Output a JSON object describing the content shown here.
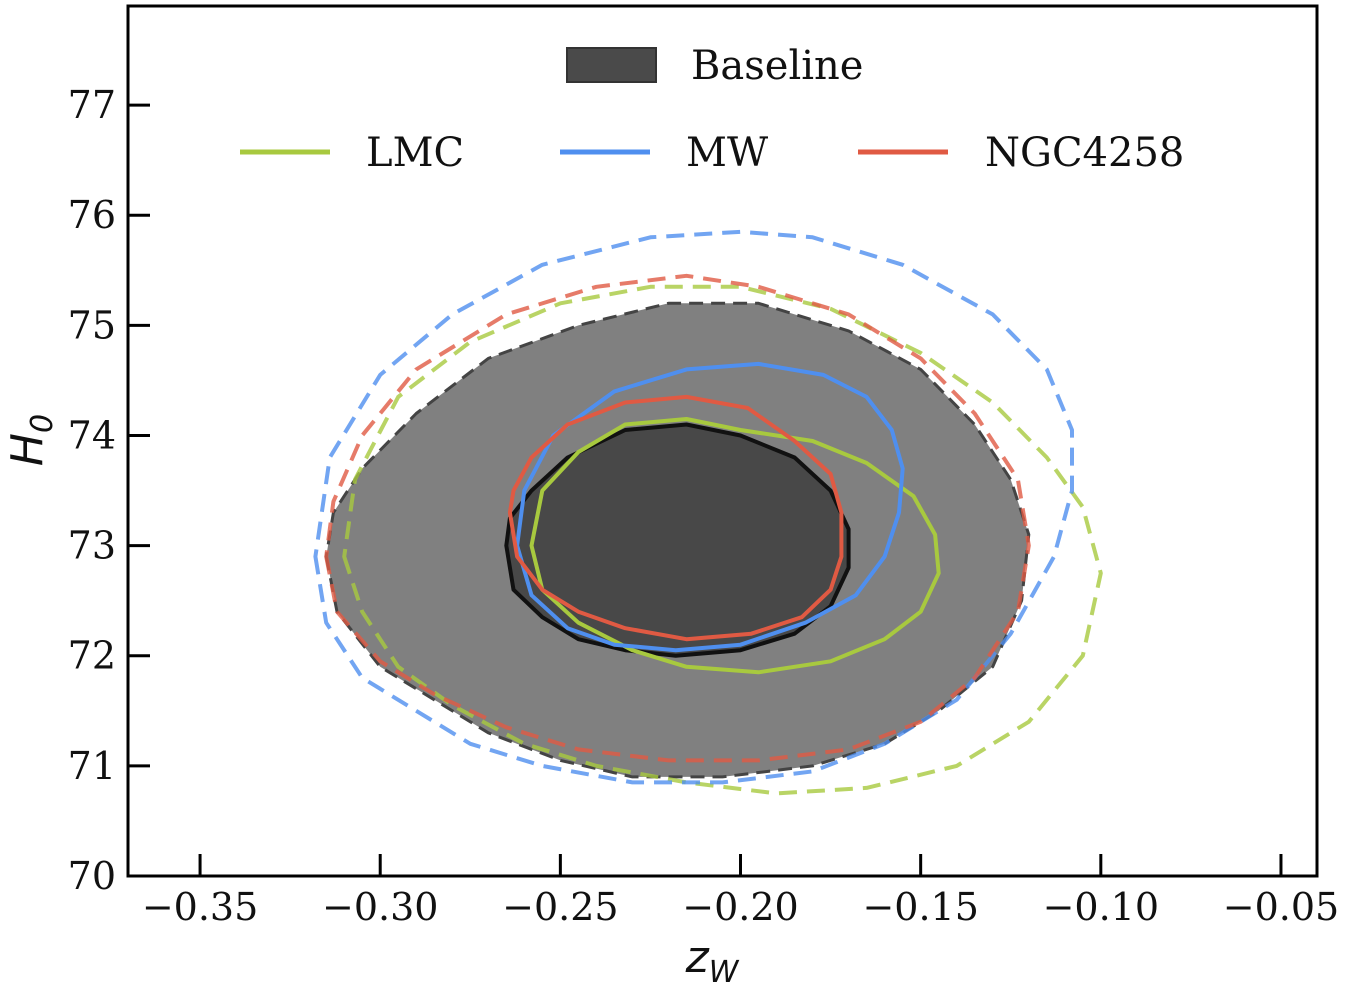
{
  "chart_data": {
    "type": "contour",
    "title": "",
    "xlabel": {
      "main": "z",
      "sub": "W"
    },
    "ylabel": {
      "main": "H",
      "sub": "0"
    },
    "xlim": [
      -0.37,
      -0.04
    ],
    "ylim": [
      70,
      77.9
    ],
    "xticks": [
      -0.35,
      -0.3,
      -0.25,
      -0.2,
      -0.15,
      -0.1,
      -0.05
    ],
    "xtick_labels": [
      "−0.35",
      "−0.30",
      "−0.25",
      "−0.20",
      "−0.15",
      "−0.10",
      "−0.05"
    ],
    "yticks": [
      70,
      71,
      72,
      73,
      74,
      75,
      76,
      77
    ],
    "ytick_labels": [
      "70",
      "71",
      "72",
      "73",
      "74",
      "75",
      "76",
      "77"
    ],
    "legend": {
      "position": "top-center",
      "filled_entry": {
        "label": "Baseline",
        "color": "#4a4a4a"
      },
      "line_entries": [
        {
          "label": "LMC",
          "color": "#a8c93f"
        },
        {
          "label": "MW",
          "color": "#4f8fef"
        },
        {
          "label": "NGC4258",
          "color": "#e05a43"
        }
      ]
    },
    "series": [
      {
        "name": "Baseline",
        "kind": "filled",
        "contours": [
          {
            "level": "95%",
            "fill": "#808080",
            "edge": "#444444",
            "points": [
              [
                -0.315,
                72.9
              ],
              [
                -0.312,
                72.4
              ],
              [
                -0.3,
                71.9
              ],
              [
                -0.285,
                71.6
              ],
              [
                -0.27,
                71.3
              ],
              [
                -0.25,
                71.05
              ],
              [
                -0.23,
                70.9
              ],
              [
                -0.205,
                70.9
              ],
              [
                -0.18,
                71.0
              ],
              [
                -0.16,
                71.2
              ],
              [
                -0.145,
                71.5
              ],
              [
                -0.13,
                71.9
              ],
              [
                -0.122,
                72.5
              ],
              [
                -0.12,
                73.1
              ],
              [
                -0.125,
                73.6
              ],
              [
                -0.135,
                74.1
              ],
              [
                -0.15,
                74.6
              ],
              [
                -0.17,
                74.95
              ],
              [
                -0.195,
                75.2
              ],
              [
                -0.22,
                75.2
              ],
              [
                -0.245,
                75.0
              ],
              [
                -0.27,
                74.7
              ],
              [
                -0.29,
                74.2
              ],
              [
                -0.305,
                73.7
              ],
              [
                -0.313,
                73.3
              ]
            ]
          },
          {
            "level": "68%",
            "fill": "#484848",
            "edge": "#111111",
            "points": [
              [
                -0.265,
                73.0
              ],
              [
                -0.263,
                72.6
              ],
              [
                -0.255,
                72.35
              ],
              [
                -0.245,
                72.15
              ],
              [
                -0.232,
                72.05
              ],
              [
                -0.218,
                72.0
              ],
              [
                -0.2,
                72.05
              ],
              [
                -0.185,
                72.2
              ],
              [
                -0.175,
                72.45
              ],
              [
                -0.17,
                72.8
              ],
              [
                -0.17,
                73.15
              ],
              [
                -0.175,
                73.5
              ],
              [
                -0.185,
                73.8
              ],
              [
                -0.2,
                74.0
              ],
              [
                -0.215,
                74.1
              ],
              [
                -0.232,
                74.05
              ],
              [
                -0.248,
                73.8
              ],
              [
                -0.258,
                73.5
              ],
              [
                -0.264,
                73.25
              ]
            ]
          }
        ]
      },
      {
        "name": "LMC",
        "kind": "line",
        "color": "#a8c93f",
        "contours": [
          {
            "level": "95%",
            "style": "dashed",
            "points": [
              [
                -0.31,
                72.9
              ],
              [
                -0.305,
                72.4
              ],
              [
                -0.295,
                71.9
              ],
              [
                -0.28,
                71.55
              ],
              [
                -0.26,
                71.2
              ],
              [
                -0.24,
                71.0
              ],
              [
                -0.215,
                70.85
              ],
              [
                -0.19,
                70.75
              ],
              [
                -0.165,
                70.8
              ],
              [
                -0.14,
                71.0
              ],
              [
                -0.12,
                71.4
              ],
              [
                -0.105,
                72.0
              ],
              [
                -0.1,
                72.75
              ],
              [
                -0.105,
                73.35
              ],
              [
                -0.115,
                73.8
              ],
              [
                -0.13,
                74.3
              ],
              [
                -0.15,
                74.75
              ],
              [
                -0.175,
                75.15
              ],
              [
                -0.2,
                75.35
              ],
              [
                -0.225,
                75.35
              ],
              [
                -0.25,
                75.2
              ],
              [
                -0.275,
                74.85
              ],
              [
                -0.295,
                74.35
              ],
              [
                -0.307,
                73.6
              ]
            ]
          },
          {
            "level": "68%",
            "style": "solid",
            "points": [
              [
                -0.258,
                73.0
              ],
              [
                -0.255,
                72.6
              ],
              [
                -0.245,
                72.3
              ],
              [
                -0.23,
                72.05
              ],
              [
                -0.215,
                71.9
              ],
              [
                -0.195,
                71.85
              ],
              [
                -0.175,
                71.95
              ],
              [
                -0.16,
                72.15
              ],
              [
                -0.15,
                72.4
              ],
              [
                -0.145,
                72.75
              ],
              [
                -0.146,
                73.1
              ],
              [
                -0.152,
                73.45
              ],
              [
                -0.165,
                73.75
              ],
              [
                -0.18,
                73.95
              ],
              [
                -0.2,
                74.05
              ],
              [
                -0.215,
                74.15
              ],
              [
                -0.232,
                74.1
              ],
              [
                -0.245,
                73.85
              ],
              [
                -0.255,
                73.5
              ]
            ]
          }
        ]
      },
      {
        "name": "MW",
        "kind": "line",
        "color": "#4f8fef",
        "contours": [
          {
            "level": "95%",
            "style": "dashed",
            "points": [
              [
                -0.318,
                72.9
              ],
              [
                -0.315,
                72.3
              ],
              [
                -0.305,
                71.8
              ],
              [
                -0.29,
                71.5
              ],
              [
                -0.275,
                71.2
              ],
              [
                -0.255,
                71.0
              ],
              [
                -0.23,
                70.85
              ],
              [
                -0.205,
                70.85
              ],
              [
                -0.18,
                70.95
              ],
              [
                -0.16,
                71.2
              ],
              [
                -0.14,
                71.6
              ],
              [
                -0.125,
                72.2
              ],
              [
                -0.113,
                72.9
              ],
              [
                -0.108,
                73.5
              ],
              [
                -0.108,
                74.05
              ],
              [
                -0.115,
                74.6
              ],
              [
                -0.13,
                75.1
              ],
              [
                -0.155,
                75.55
              ],
              [
                -0.18,
                75.8
              ],
              [
                -0.2,
                75.85
              ],
              [
                -0.225,
                75.8
              ],
              [
                -0.255,
                75.55
              ],
              [
                -0.28,
                75.1
              ],
              [
                -0.3,
                74.55
              ],
              [
                -0.314,
                73.8
              ]
            ]
          },
          {
            "level": "68%",
            "style": "solid",
            "points": [
              [
                -0.262,
                73.0
              ],
              [
                -0.258,
                72.55
              ],
              [
                -0.248,
                72.25
              ],
              [
                -0.235,
                72.1
              ],
              [
                -0.218,
                72.05
              ],
              [
                -0.2,
                72.1
              ],
              [
                -0.182,
                72.3
              ],
              [
                -0.168,
                72.55
              ],
              [
                -0.16,
                72.9
              ],
              [
                -0.156,
                73.3
              ],
              [
                -0.155,
                73.7
              ],
              [
                -0.158,
                74.05
              ],
              [
                -0.165,
                74.35
              ],
              [
                -0.177,
                74.55
              ],
              [
                -0.195,
                74.65
              ],
              [
                -0.215,
                74.6
              ],
              [
                -0.235,
                74.4
              ],
              [
                -0.252,
                74.0
              ],
              [
                -0.26,
                73.5
              ]
            ]
          }
        ]
      },
      {
        "name": "NGC4258",
        "kind": "line",
        "color": "#e05a43",
        "contours": [
          {
            "level": "95%",
            "style": "dashed",
            "points": [
              [
                -0.315,
                72.9
              ],
              [
                -0.312,
                72.4
              ],
              [
                -0.3,
                71.95
              ],
              [
                -0.285,
                71.65
              ],
              [
                -0.265,
                71.35
              ],
              [
                -0.245,
                71.15
              ],
              [
                -0.22,
                71.05
              ],
              [
                -0.195,
                71.05
              ],
              [
                -0.17,
                71.15
              ],
              [
                -0.15,
                71.4
              ],
              [
                -0.135,
                71.8
              ],
              [
                -0.123,
                72.4
              ],
              [
                -0.12,
                73.0
              ],
              [
                -0.123,
                73.6
              ],
              [
                -0.135,
                74.2
              ],
              [
                -0.15,
                74.7
              ],
              [
                -0.17,
                75.1
              ],
              [
                -0.195,
                75.35
              ],
              [
                -0.215,
                75.45
              ],
              [
                -0.24,
                75.35
              ],
              [
                -0.265,
                75.1
              ],
              [
                -0.29,
                74.6
              ],
              [
                -0.305,
                74.0
              ],
              [
                -0.313,
                73.4
              ]
            ]
          },
          {
            "level": "68%",
            "style": "solid",
            "points": [
              [
                -0.264,
                73.3
              ],
              [
                -0.262,
                72.9
              ],
              [
                -0.255,
                72.6
              ],
              [
                -0.245,
                72.4
              ],
              [
                -0.232,
                72.25
              ],
              [
                -0.215,
                72.15
              ],
              [
                -0.197,
                72.2
              ],
              [
                -0.183,
                72.35
              ],
              [
                -0.175,
                72.6
              ],
              [
                -0.172,
                72.9
              ],
              [
                -0.172,
                73.3
              ],
              [
                -0.175,
                73.65
              ],
              [
                -0.185,
                73.95
              ],
              [
                -0.198,
                74.25
              ],
              [
                -0.215,
                74.35
              ],
              [
                -0.232,
                74.3
              ],
              [
                -0.248,
                74.1
              ],
              [
                -0.258,
                73.8
              ],
              [
                -0.263,
                73.5
              ]
            ]
          }
        ]
      }
    ]
  }
}
